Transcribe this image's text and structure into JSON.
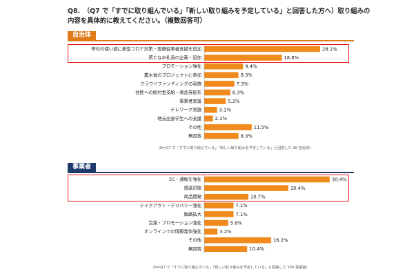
{
  "question": {
    "line1": "Q8.　（Q7 で「すでに取り組んでいる」「新しい取り組みを予定している」と回答した方へ）取り組みの",
    "line2": "内容を具体的に教えてください。（複数回答可）"
  },
  "colors": {
    "bar": "#f08a1c",
    "gov_accent": "#e07b1a",
    "biz_accent": "#1f3b6b",
    "highlight": "#e8141b"
  },
  "chart_data": [
    {
      "type": "bar",
      "orientation": "horizontal",
      "section_label": "自治体",
      "categories": [
        "寄付の使い道に新型コロナ対策・医療従事者支援を追加",
        "新たなお礼品の企画・追加",
        "プロモーション強化",
        "農水省のプロジェクトに参加",
        "クラウドファンディングの実施",
        "住民への給付金支給・商品券配布",
        "事業者支援",
        "テレワーク実施",
        "地元出身学生への支援",
        "その他",
        "無回答"
      ],
      "values": [
        28.1,
        18.8,
        9.4,
        8.3,
        7.3,
        6.3,
        5.2,
        3.1,
        2.1,
        11.5,
        8.3
      ],
      "value_labels": [
        "28.1%",
        "18.8%",
        "9.4%",
        "8.3%",
        "7.3%",
        "6.3%",
        "5.2%",
        "3.1%",
        "2.1%",
        "11.5%",
        "8.3%"
      ],
      "highlighted_count": 2,
      "note": "(N=Q7 で「すでに取り組んでいる」「新しい取り組みを予定している」と回答した 96 自治体)"
    },
    {
      "type": "bar",
      "orientation": "horizontal",
      "section_label": "事業者",
      "categories": [
        "EC・通販を強化",
        "感染対策",
        "商品開発",
        "テイクアウト・デリバリー強化",
        "販路拡大",
        "営業・プロモーション強化",
        "オンラインでの情報発信強化",
        "その他",
        "無回答"
      ],
      "values": [
        30.4,
        20.4,
        10.7,
        7.1,
        7.1,
        5.8,
        3.2,
        16.2,
        10.4
      ],
      "value_labels": [
        "30.4%",
        "20.4%",
        "10.7%",
        "7.1%",
        "7.1%",
        "5.8%",
        "3.2%",
        "16.2%",
        "10.4%"
      ],
      "highlighted_count": 3,
      "note": "(N=Q7 で「すでに取り組んでいる」「新しい取り組みを予定している」と回答した 309 事業者)"
    }
  ]
}
